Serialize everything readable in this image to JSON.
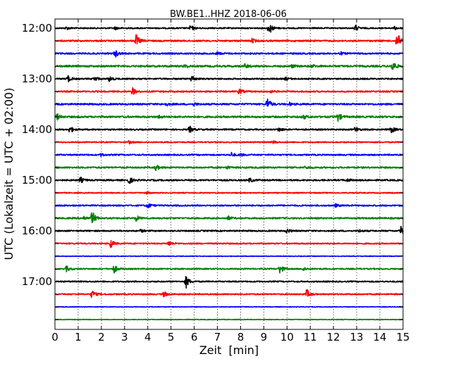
{
  "chart_data": {
    "type": "line",
    "title": "BW.BE1..HHZ 2018-06-06",
    "xlabel": "Zeit  [min]",
    "ylabel": "UTC (Lokalzeit = UTC + 02:00)",
    "xlim": [
      0,
      15
    ],
    "x_ticks": [
      0,
      1,
      2,
      3,
      4,
      5,
      6,
      7,
      8,
      9,
      10,
      11,
      12,
      13,
      14,
      15
    ],
    "grid": "vertical dotted lines at every minute",
    "y_tick_labels": [
      "12:00",
      "13:00",
      "14:00",
      "15:00",
      "16:00",
      "17:00"
    ],
    "trace_interval_minutes": 15,
    "color_cycle": [
      "#000000",
      "#ff0000",
      "#0000ff",
      "#008000"
    ],
    "traces": [
      {
        "start": "12:00",
        "color": "#000000",
        "amp": 1.0,
        "events": [
          {
            "t": 0.5,
            "a": 2
          },
          {
            "t": 2.6,
            "a": 2
          },
          {
            "t": 5.85,
            "a": 4
          },
          {
            "t": 9.2,
            "a": 5
          },
          {
            "t": 9.3,
            "a": 3
          },
          {
            "t": 12.95,
            "a": 4
          },
          {
            "t": 14.65,
            "a": 2
          }
        ]
      },
      {
        "start": "12:15",
        "color": "#ff0000",
        "amp": 1.2,
        "events": [
          {
            "t": 3.5,
            "a": 9
          },
          {
            "t": 8.5,
            "a": 3
          },
          {
            "t": 14.75,
            "a": 13
          }
        ]
      },
      {
        "start": "12:30",
        "color": "#0000ff",
        "amp": 1.2,
        "events": [
          {
            "t": 2.6,
            "a": 5
          },
          {
            "t": 7.0,
            "a": 2
          },
          {
            "t": 12.3,
            "a": 2
          }
        ]
      },
      {
        "start": "12:45",
        "color": "#008000",
        "amp": 1.4,
        "events": [
          {
            "t": 5.6,
            "a": 2
          },
          {
            "t": 8.2,
            "a": 3
          },
          {
            "t": 10.2,
            "a": 2
          },
          {
            "t": 11.1,
            "a": 2
          },
          {
            "t": 14.55,
            "a": 8
          }
        ]
      },
      {
        "start": "13:00",
        "color": "#000000",
        "amp": 1.1,
        "events": [
          {
            "t": 0.55,
            "a": 5
          },
          {
            "t": 1.7,
            "a": 4
          },
          {
            "t": 2.35,
            "a": 4
          },
          {
            "t": 5.9,
            "a": 5
          },
          {
            "t": 9.95,
            "a": 2
          }
        ]
      },
      {
        "start": "13:15",
        "color": "#ff0000",
        "amp": 1.1,
        "events": [
          {
            "t": 3.35,
            "a": 5
          },
          {
            "t": 7.95,
            "a": 4
          },
          {
            "t": 9.25,
            "a": 2
          }
        ]
      },
      {
        "start": "13:30",
        "color": "#0000ff",
        "amp": 1.3,
        "events": [
          {
            "t": 4.8,
            "a": 2
          },
          {
            "t": 6.0,
            "a": 2
          },
          {
            "t": 9.15,
            "a": 9
          },
          {
            "t": 10.1,
            "a": 2
          }
        ]
      },
      {
        "start": "13:45",
        "color": "#008000",
        "amp": 1.4,
        "events": [
          {
            "t": 0.1,
            "a": 4
          },
          {
            "t": 4.5,
            "a": 2
          },
          {
            "t": 10.7,
            "a": 3
          },
          {
            "t": 12.2,
            "a": 6
          }
        ]
      },
      {
        "start": "14:00",
        "color": "#000000",
        "amp": 1.1,
        "events": [
          {
            "t": 0.65,
            "a": 5
          },
          {
            "t": 5.8,
            "a": 5
          },
          {
            "t": 9.65,
            "a": 3
          },
          {
            "t": 12.95,
            "a": 4
          },
          {
            "t": 14.5,
            "a": 5
          }
        ]
      },
      {
        "start": "14:15",
        "color": "#ff0000",
        "amp": 0.9,
        "events": [
          {
            "t": 3.2,
            "a": 2
          },
          {
            "t": 9.4,
            "a": 2
          }
        ]
      },
      {
        "start": "14:30",
        "color": "#0000ff",
        "amp": 1.1,
        "events": [
          {
            "t": 2.0,
            "a": 2
          },
          {
            "t": 7.6,
            "a": 3
          },
          {
            "t": 8.0,
            "a": 2
          }
        ]
      },
      {
        "start": "14:45",
        "color": "#008000",
        "amp": 1.2,
        "events": [
          {
            "t": 4.35,
            "a": 4
          },
          {
            "t": 7.4,
            "a": 2
          },
          {
            "t": 10.8,
            "a": 2
          }
        ]
      },
      {
        "start": "15:00",
        "color": "#000000",
        "amp": 1.2,
        "events": [
          {
            "t": 1.1,
            "a": 4
          },
          {
            "t": 3.2,
            "a": 5
          },
          {
            "t": 8.4,
            "a": 3
          },
          {
            "t": 12.6,
            "a": 2
          }
        ]
      },
      {
        "start": "15:15",
        "color": "#ff0000",
        "amp": 0.8,
        "events": [
          {
            "t": 3.9,
            "a": 2
          }
        ]
      },
      {
        "start": "15:30",
        "color": "#0000ff",
        "amp": 1.1,
        "events": [
          {
            "t": 4.0,
            "a": 4
          },
          {
            "t": 12.1,
            "a": 2
          }
        ]
      },
      {
        "start": "15:45",
        "color": "#008000",
        "amp": 1.2,
        "events": [
          {
            "t": 1.25,
            "a": 3
          },
          {
            "t": 1.6,
            "a": 10
          },
          {
            "t": 3.5,
            "a": 4
          },
          {
            "t": 7.45,
            "a": 3
          }
        ]
      },
      {
        "start": "16:00",
        "color": "#000000",
        "amp": 1.1,
        "events": [
          {
            "t": 3.7,
            "a": 2
          },
          {
            "t": 10.0,
            "a": 3
          },
          {
            "t": 13.1,
            "a": 2
          },
          {
            "t": 14.9,
            "a": 6
          }
        ]
      },
      {
        "start": "16:15",
        "color": "#ff0000",
        "amp": 1.0,
        "events": [
          {
            "t": 2.4,
            "a": 6
          },
          {
            "t": 4.9,
            "a": 4
          }
        ]
      },
      {
        "start": "16:30",
        "color": "#0000ff",
        "amp": 0.5,
        "events": []
      },
      {
        "start": "16:45",
        "color": "#008000",
        "amp": 1.0,
        "events": [
          {
            "t": 0.5,
            "a": 4
          },
          {
            "t": 2.55,
            "a": 6
          },
          {
            "t": 9.7,
            "a": 7
          },
          {
            "t": 10.7,
            "a": 3
          }
        ]
      },
      {
        "start": "17:00",
        "color": "#000000",
        "amp": 1.0,
        "events": [
          {
            "t": 5.65,
            "a": 9
          }
        ]
      },
      {
        "start": "17:15",
        "color": "#ff0000",
        "amp": 1.0,
        "events": [
          {
            "t": 1.6,
            "a": 6
          },
          {
            "t": 4.7,
            "a": 4
          },
          {
            "t": 10.85,
            "a": 7
          }
        ]
      },
      {
        "start": "17:30",
        "color": "#0000ff",
        "amp": 0.5,
        "events": []
      },
      {
        "start": "17:45",
        "color": "#008000",
        "amp": 0.5,
        "events": []
      }
    ]
  }
}
